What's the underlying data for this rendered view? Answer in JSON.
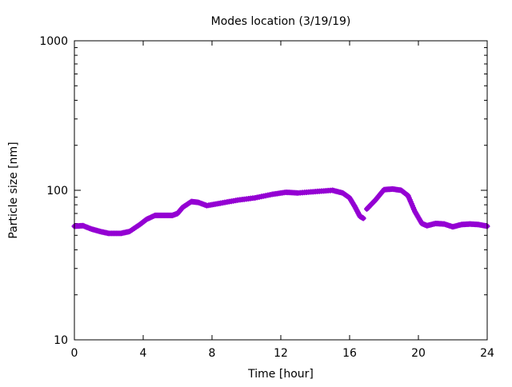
{
  "chart_data": {
    "type": "scatter",
    "title": "Modes location (3/19/19)",
    "xlabel": "Time [hour]",
    "ylabel": "Particle size [nm]",
    "xlim": [
      0,
      24
    ],
    "ylim": [
      10,
      1000
    ],
    "yscale": "log",
    "xticks": [
      "0",
      "4",
      "8",
      "12",
      "16",
      "20",
      "24"
    ],
    "yticks": [
      "10",
      "100",
      "1000"
    ],
    "grid": false,
    "color": "#9400D3",
    "series": [
      {
        "name": "modes",
        "segments": [
          {
            "x": [
              0,
              0.5,
              1,
              1.5,
              2,
              2.7,
              3.2,
              3.8,
              4.2,
              4.7,
              5.2,
              5.7,
              6.0,
              6.3,
              6.8,
              7.2,
              7.7,
              8.5,
              9.5,
              10.5,
              11.5,
              12.3,
              13,
              14,
              15,
              15.6,
              16.0,
              16.3,
              16.6,
              16.8
            ],
            "y": [
              57.5,
              58,
              55,
              53,
              51.5,
              51.5,
              53,
              59,
              64,
              68,
              68,
              68,
              70,
              77,
              84,
              83,
              79,
              82,
              86,
              89,
              94,
              97,
              96,
              98,
              100,
              96,
              89,
              78,
              67,
              65
            ]
          },
          {
            "x": [
              17.0,
              17.5,
              18,
              18.5,
              19,
              19.4,
              19.8,
              20.2,
              20.5,
              21,
              21.5,
              22,
              22.5,
              23,
              23.5,
              24
            ],
            "y": [
              75,
              86,
              101,
              102,
              100,
              92,
              72,
              60,
              58,
              60,
              59.5,
              57,
              59,
              59.5,
              59,
              57.5
            ]
          }
        ]
      }
    ]
  }
}
